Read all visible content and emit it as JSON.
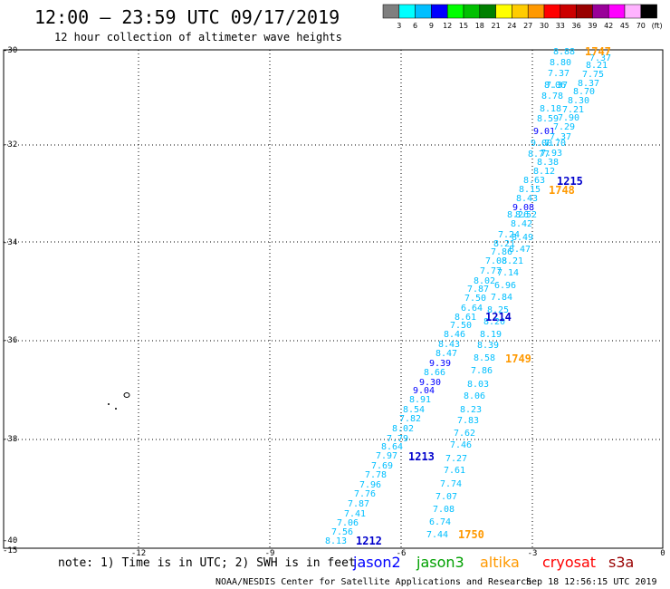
{
  "header": {
    "title": "12:00 — 23:59 UTC 09/17/2019",
    "subtitle": "12 hour collection of altimeter wave heights"
  },
  "colorbar": {
    "colors": [
      "#7f7f7f",
      "#00ffff",
      "#00bfff",
      "#0000ff",
      "#00ff00",
      "#00c000",
      "#008000",
      "#ffff00",
      "#ffcc00",
      "#ff9900",
      "#ff0000",
      "#cc0000",
      "#990000",
      "#990099",
      "#ff00ff",
      "#ffb3ff",
      "#000000"
    ],
    "labels": [
      "3",
      "6",
      "9",
      "12",
      "15",
      "18",
      "21",
      "24",
      "27",
      "30",
      "33",
      "36",
      "39",
      "42",
      "45",
      "70",
      "(ft)"
    ]
  },
  "map": {
    "lon_range": [
      -15,
      0
    ],
    "lat_range": [
      -40,
      -30
    ],
    "x_ticks": [
      "-12",
      "-9",
      "-6",
      "-3",
      "0"
    ],
    "y_ticks": [
      "-30",
      "-32",
      "-34",
      "-36",
      "-38",
      "-40"
    ],
    "corner_label": "-15"
  },
  "swh_points": [
    {
      "t": "8.88",
      "c": "#00bfff"
    },
    {
      "t": "7.37",
      "c": "#00bfff"
    },
    {
      "t": "8.80",
      "c": "#00bfff"
    },
    {
      "t": "8.21",
      "c": "#00bfff"
    },
    {
      "t": "7.37",
      "c": "#00bfff"
    },
    {
      "t": "7.75",
      "c": "#00bfff"
    },
    {
      "t": "7.37",
      "c": "#00bfff"
    },
    {
      "t": "8.37",
      "c": "#00bfff"
    },
    {
      "t": "8.06",
      "c": "#00bfff"
    },
    {
      "t": "8.70",
      "c": "#00bfff"
    },
    {
      "t": "8.78",
      "c": "#00bfff"
    },
    {
      "t": "8.30",
      "c": "#00bfff"
    },
    {
      "t": "8.18",
      "c": "#00bfff"
    },
    {
      "t": "7.21",
      "c": "#00bfff"
    },
    {
      "t": "8.59",
      "c": "#00bfff"
    },
    {
      "t": "7.90",
      "c": "#00bfff"
    },
    {
      "t": "9.01",
      "c": "#0000ff"
    },
    {
      "t": "7.29",
      "c": "#00bfff"
    },
    {
      "t": "7.37",
      "c": "#00bfff"
    },
    {
      "t": "9.00",
      "c": "#00bfff"
    },
    {
      "t": "7.70",
      "c": "#00bfff"
    },
    {
      "t": "8.77",
      "c": "#00bfff"
    },
    {
      "t": "7.93",
      "c": "#00bfff"
    },
    {
      "t": "8.38",
      "c": "#00bfff"
    },
    {
      "t": "8.12",
      "c": "#00bfff"
    },
    {
      "t": "8.63",
      "c": "#00bfff"
    },
    {
      "t": "8.15",
      "c": "#00bfff"
    },
    {
      "t": "8.43",
      "c": "#00bfff"
    },
    {
      "t": "9.08",
      "c": "#0000ff"
    },
    {
      "t": "8.26",
      "c": "#00bfff"
    },
    {
      "t": "8.52",
      "c": "#00bfff"
    },
    {
      "t": "8.42",
      "c": "#00bfff"
    },
    {
      "t": "7.24",
      "c": "#00bfff"
    },
    {
      "t": "8.49",
      "c": "#00bfff"
    },
    {
      "t": "8.21",
      "c": "#00bfff"
    },
    {
      "t": "8.47",
      "c": "#00bfff"
    },
    {
      "t": "7.86",
      "c": "#00bfff"
    },
    {
      "t": "7.08",
      "c": "#00bfff"
    },
    {
      "t": "8.21",
      "c": "#00bfff"
    },
    {
      "t": "7.77",
      "c": "#00bfff"
    },
    {
      "t": "7.14",
      "c": "#00bfff"
    },
    {
      "t": "8.02",
      "c": "#00bfff"
    },
    {
      "t": "7.87",
      "c": "#00bfff"
    },
    {
      "t": "6.96",
      "c": "#00bfff"
    },
    {
      "t": "7.50",
      "c": "#00bfff"
    },
    {
      "t": "7.84",
      "c": "#00bfff"
    },
    {
      "t": "6.64",
      "c": "#00bfff"
    },
    {
      "t": "8.25",
      "c": "#00bfff"
    },
    {
      "t": "8.61",
      "c": "#00bfff"
    },
    {
      "t": "8.20",
      "c": "#00bfff"
    },
    {
      "t": "7.50",
      "c": "#00bfff"
    },
    {
      "t": "8.46",
      "c": "#00bfff"
    },
    {
      "t": "8.19",
      "c": "#00bfff"
    },
    {
      "t": "8.43",
      "c": "#00bfff"
    },
    {
      "t": "8.39",
      "c": "#00bfff"
    },
    {
      "t": "8.47",
      "c": "#00bfff"
    },
    {
      "t": "8.58",
      "c": "#00bfff"
    },
    {
      "t": "9.39",
      "c": "#0000ff"
    },
    {
      "t": "8.66",
      "c": "#00bfff"
    },
    {
      "t": "7.86",
      "c": "#00bfff"
    },
    {
      "t": "9.30",
      "c": "#0000ff"
    },
    {
      "t": "8.03",
      "c": "#00bfff"
    },
    {
      "t": "9.04",
      "c": "#0000ff"
    },
    {
      "t": "8.91",
      "c": "#00bfff"
    },
    {
      "t": "8.06",
      "c": "#00bfff"
    },
    {
      "t": "8.54",
      "c": "#00bfff"
    },
    {
      "t": "8.23",
      "c": "#00bfff"
    },
    {
      "t": "7.82",
      "c": "#00bfff"
    },
    {
      "t": "7.83",
      "c": "#00bfff"
    },
    {
      "t": "8.02",
      "c": "#00bfff"
    },
    {
      "t": "7.62",
      "c": "#00bfff"
    },
    {
      "t": "7.79",
      "c": "#00bfff"
    },
    {
      "t": "8.64",
      "c": "#00bfff"
    },
    {
      "t": "7.46",
      "c": "#00bfff"
    },
    {
      "t": "7.97",
      "c": "#00bfff"
    },
    {
      "t": "7.27",
      "c": "#00bfff"
    },
    {
      "t": "7.69",
      "c": "#00bfff"
    },
    {
      "t": "7.61",
      "c": "#00bfff"
    },
    {
      "t": "7.78",
      "c": "#00bfff"
    },
    {
      "t": "7.96",
      "c": "#00bfff"
    },
    {
      "t": "7.74",
      "c": "#00bfff"
    },
    {
      "t": "7.76",
      "c": "#00bfff"
    },
    {
      "t": "7.07",
      "c": "#00bfff"
    },
    {
      "t": "7.87",
      "c": "#00bfff"
    },
    {
      "t": "7.41",
      "c": "#00bfff"
    },
    {
      "t": "7.08",
      "c": "#00bfff"
    },
    {
      "t": "7.06",
      "c": "#00bfff"
    },
    {
      "t": "6.74",
      "c": "#00bfff"
    },
    {
      "t": "7.56",
      "c": "#00bfff"
    },
    {
      "t": "7.44",
      "c": "#00bfff"
    },
    {
      "t": "8.13",
      "c": "#00bfff"
    }
  ],
  "pass_labels": [
    {
      "t": "1747",
      "c": "#ff9900"
    },
    {
      "t": "1215",
      "c": "#0000cc"
    },
    {
      "t": "1748",
      "c": "#ff9900"
    },
    {
      "t": "1214",
      "c": "#0000cc"
    },
    {
      "t": "1749",
      "c": "#ff9900"
    },
    {
      "t": "1213",
      "c": "#0000cc"
    },
    {
      "t": "1750",
      "c": "#ff9900"
    },
    {
      "t": "1212",
      "c": "#0000cc"
    }
  ],
  "footer": {
    "note": "note: 1) Time is in UTC; 2) SWH is in feet",
    "satellites": [
      {
        "name": "jason2",
        "color": "#0000ff"
      },
      {
        "name": "jason3",
        "color": "#00a000"
      },
      {
        "name": "altika",
        "color": "#ff9900"
      },
      {
        "name": "cryosat",
        "color": "#ff0000"
      },
      {
        "name": "s3a",
        "color": "#990000"
      }
    ],
    "credit_left": "NOAA/NESDIS Center for Satellite Applications and Research",
    "credit_right": "Sep 18 12:56:15 UTC 2019"
  }
}
